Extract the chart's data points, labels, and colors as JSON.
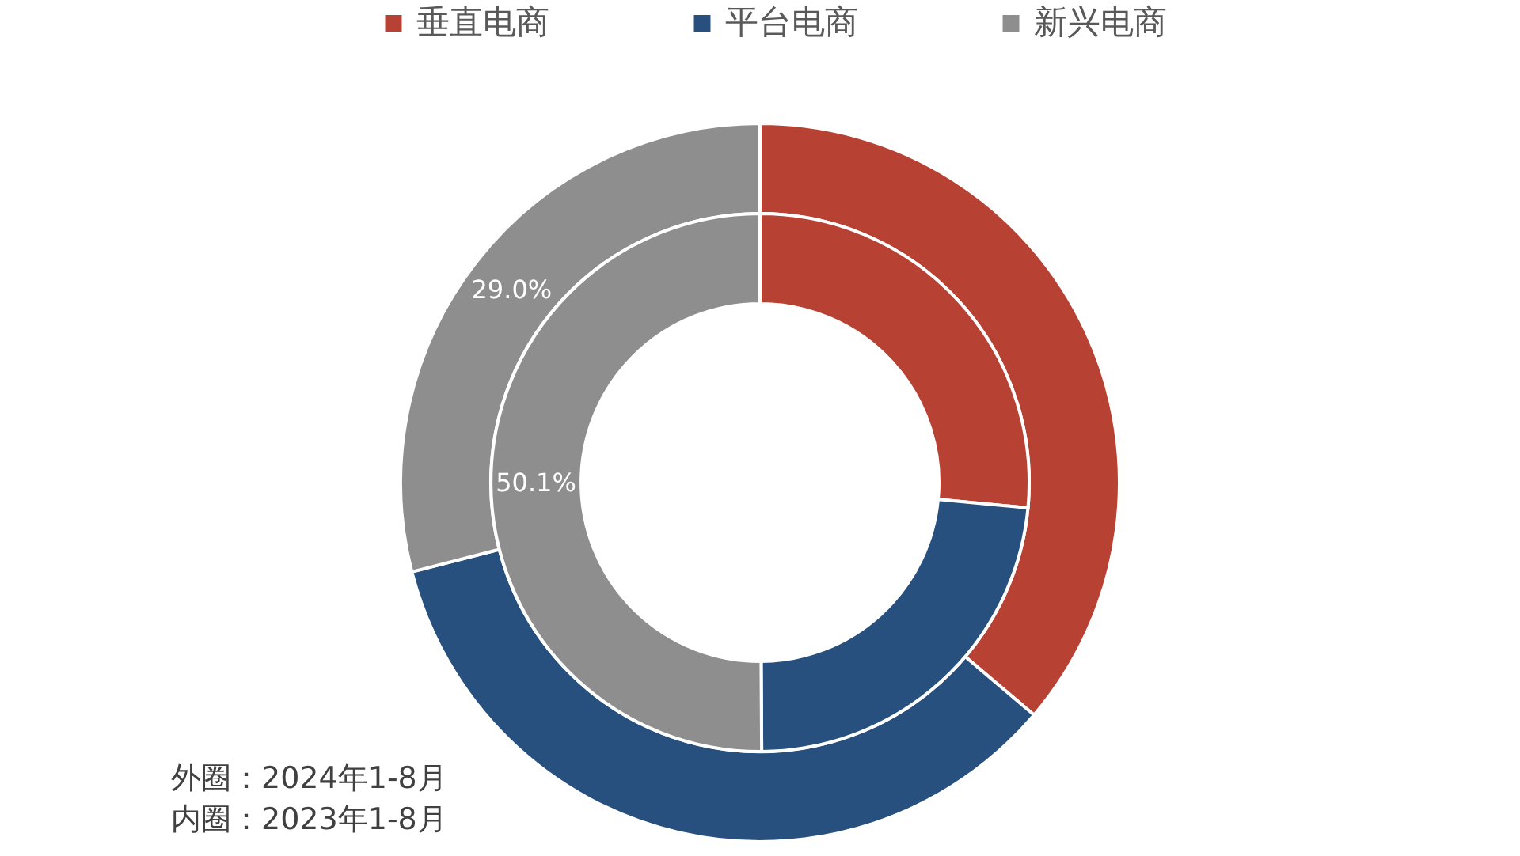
{
  "chart_data": {
    "type": "donut",
    "categories": [
      "垂直电商",
      "平台电商",
      "新兴电商"
    ],
    "colors": [
      "#b74233",
      "#27507f",
      "#8e8e8e"
    ],
    "series": [
      {
        "values": [
          36.2,
          34.8,
          29.0
        ],
        "value_labels": [
          null,
          null,
          "29.0%"
        ]
      },
      {
        "values": [
          26.5,
          23.4,
          50.1
        ],
        "value_labels": [
          null,
          null,
          "50.1%"
        ]
      }
    ],
    "legend": "top",
    "annotations": [
      "外圈：2024年1-8月",
      "内圈：2023年1-8月"
    ]
  }
}
